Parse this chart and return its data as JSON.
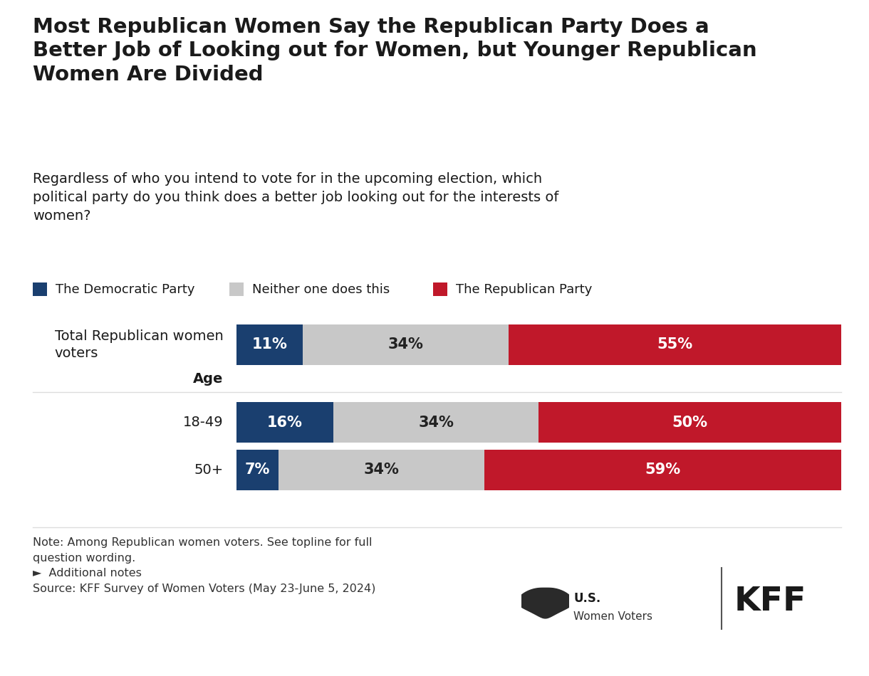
{
  "title": "Most Republican Women Say the Republican Party Does a\nBetter Job of Looking out for Women, but Younger Republican\nWomen Are Divided",
  "subtitle": "Regardless of who you intend to vote for in the upcoming election, which\npolitical party do you think does a better job looking out for the interests of\nwomen?",
  "categories": [
    "Total Republican women\nvoters",
    "18-49",
    "50+"
  ],
  "dem_values": [
    11,
    16,
    7
  ],
  "neither_values": [
    34,
    34,
    34
  ],
  "rep_values": [
    55,
    50,
    59
  ],
  "dem_color": "#1a3f6f",
  "neither_color": "#c8c8c8",
  "rep_color": "#c0182a",
  "legend_labels": [
    "The Democratic Party",
    "Neither one does this",
    "The Republican Party"
  ],
  "note_text": "Note: Among Republican women voters. See topline for full\nquestion wording.\n►  Additional notes\nSource: KFF Survey of Women Voters (May 23-June 5, 2024)",
  "background_color": "#ffffff",
  "age_label": "Age"
}
